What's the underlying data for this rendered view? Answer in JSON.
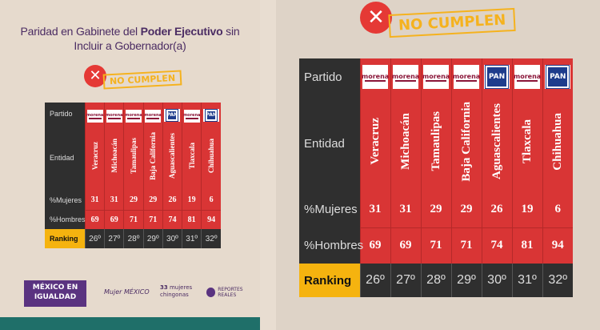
{
  "left": {
    "title_part1": "Paridad en Gabinete del ",
    "title_bold": "Poder Ejecutivo",
    "title_part2": " sin Incluir a Gobernador(a)",
    "stamp_text": "NO CUMPLEN",
    "footer": {
      "logo1_line1": "MÉXICO EN",
      "logo1_line2": "IGUALDAD",
      "logo2": "Mujer MÉXICO",
      "logo3_num": "33",
      "logo3_text": "mujeres chingonas",
      "logo4": "REPORTES REALES"
    }
  },
  "right": {
    "stamp_text": "NO CUMPLEN"
  },
  "table": {
    "row_labels": {
      "partido": "Partido",
      "entidad": "Entidad",
      "mujeres": "%Mujeres",
      "hombres": "%Hombres",
      "ranking": "Ranking"
    },
    "columns": [
      {
        "party": "morena",
        "entidad": "Veracruz",
        "mujeres": "31",
        "hombres": "69",
        "ranking": "26º"
      },
      {
        "party": "morena",
        "entidad": "Michoacán",
        "mujeres": "31",
        "hombres": "69",
        "ranking": "27º"
      },
      {
        "party": "morena",
        "entidad": "Tamaulipas",
        "mujeres": "29",
        "hombres": "71",
        "ranking": "28º"
      },
      {
        "party": "morena",
        "entidad": "Baja California",
        "mujeres": "29",
        "hombres": "71",
        "ranking": "29º"
      },
      {
        "party": "PAN",
        "entidad": "Aguascalientes",
        "mujeres": "26",
        "hombres": "74",
        "ranking": "30º"
      },
      {
        "party": "morena",
        "entidad": "Tlaxcala",
        "mujeres": "19",
        "hombres": "81",
        "ranking": "31º"
      },
      {
        "party": "PAN",
        "entidad": "Chihuahua",
        "mujeres": "6",
        "hombres": "94",
        "ranking": "32º"
      }
    ]
  },
  "colors": {
    "red": "#d93535",
    "dark": "#2f2f2f",
    "gold": "#f5b30f",
    "purple": "#4b2c63",
    "teal": "#1f6f69"
  }
}
